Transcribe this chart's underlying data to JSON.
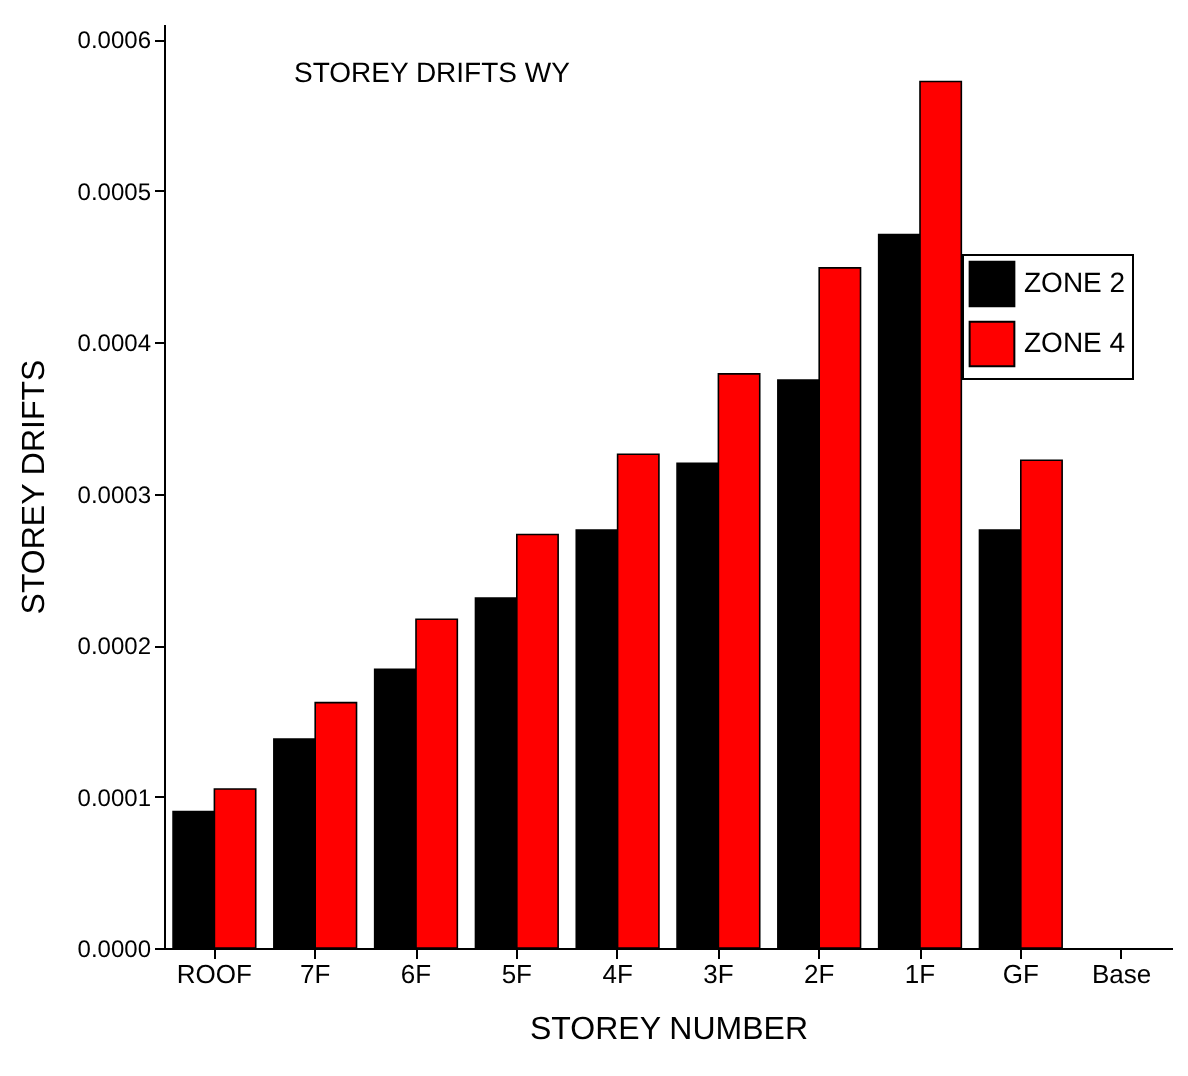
{
  "chart_data": {
    "type": "bar",
    "title": "STOREY DRIFTS WY",
    "xlabel": "STOREY NUMBER",
    "ylabel": "STOREY DRIFTS",
    "categories": [
      "ROOF",
      "7F",
      "6F",
      "5F",
      "4F",
      "3F",
      "2F",
      "1F",
      "GF",
      "Base"
    ],
    "series": [
      {
        "name": "ZONE 2",
        "color": "#000000",
        "values": [
          9e-05,
          0.000138,
          0.000184,
          0.000231,
          0.000276,
          0.00032,
          0.000375,
          0.000471,
          0.000276,
          null
        ]
      },
      {
        "name": "ZONE 4",
        "color": "#ff0000",
        "values": [
          0.000105,
          0.000162,
          0.000217,
          0.000273,
          0.000326,
          0.000379,
          0.000449,
          0.000572,
          0.000322,
          null
        ]
      }
    ],
    "ylim": [
      0,
      0.00061
    ],
    "yticks": [
      {
        "value": 0,
        "label": "0.0000"
      },
      0.0001,
      0.0002,
      0.0003,
      0.0004,
      0.0005,
      0.0006
    ],
    "grid": false,
    "legend": "top right"
  }
}
